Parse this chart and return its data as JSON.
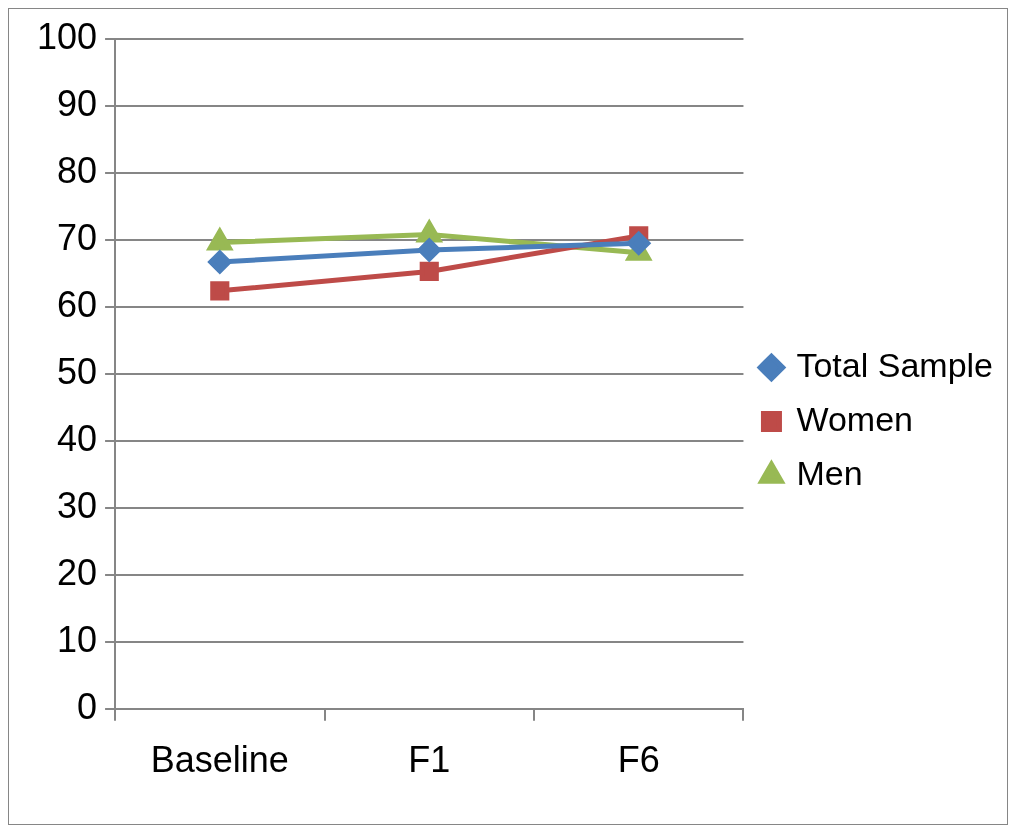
{
  "chart_data": {
    "type": "line",
    "categories": [
      "Baseline",
      "F1",
      "F6"
    ],
    "series": [
      {
        "name": "Total Sample",
        "color": "#4a7ebb",
        "marker": "diamond",
        "values": [
          66.7,
          68.5,
          69.5
        ]
      },
      {
        "name": "Women",
        "color": "#be4b48",
        "marker": "square",
        "values": [
          62.4,
          65.3,
          70.6
        ]
      },
      {
        "name": "Men",
        "color": "#98b954",
        "marker": "triangle",
        "values": [
          69.6,
          70.8,
          68.1
        ]
      }
    ],
    "ylim": [
      0,
      100
    ],
    "yticks": [
      0,
      10,
      20,
      30,
      40,
      50,
      60,
      70,
      80,
      90,
      100
    ],
    "grid": "y",
    "legend": "right",
    "line_style": "solid"
  }
}
